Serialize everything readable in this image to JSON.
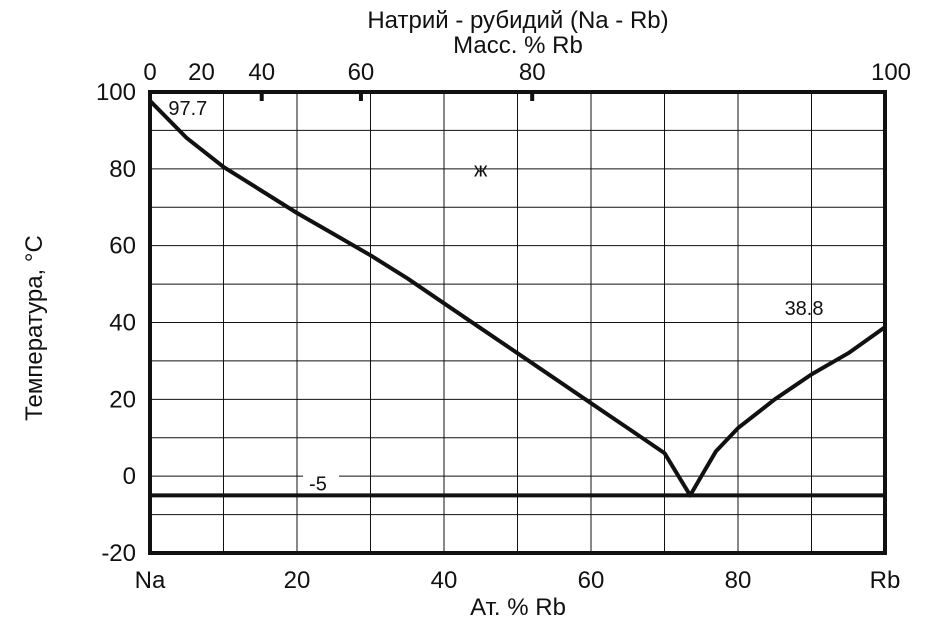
{
  "chart_data": {
    "type": "line",
    "title": "Натрий - рубидий (Na - Rb)",
    "top_axis_label": "Масс. % Rb",
    "xlabel": "Ат. % Rb",
    "ylabel": "Температура,  °C",
    "xlim": [
      0,
      100
    ],
    "ylim": [
      -20,
      100
    ],
    "x_ticks": [
      {
        "value": 0,
        "label": "Na"
      },
      {
        "value": 20,
        "label": "20"
      },
      {
        "value": 40,
        "label": "40"
      },
      {
        "value": 60,
        "label": "60"
      },
      {
        "value": 80,
        "label": "80"
      },
      {
        "value": 100,
        "label": "Rb"
      }
    ],
    "y_ticks": [
      {
        "value": 100,
        "label": "100"
      },
      {
        "value": 80,
        "label": "80"
      },
      {
        "value": 60,
        "label": "60"
      },
      {
        "value": 40,
        "label": "40"
      },
      {
        "value": 20,
        "label": "20"
      },
      {
        "value": 0,
        "label": "0"
      },
      {
        "value": -20,
        "label": "-20"
      }
    ],
    "mass_ticks": [
      {
        "label": "0",
        "at_pct": 0,
        "tick": false
      },
      {
        "label": "20",
        "at_pct": 7,
        "tick": false
      },
      {
        "label": "40",
        "at_pct": 15.2,
        "tick": true
      },
      {
        "label": "60",
        "at_pct": 28.7,
        "tick": true
      },
      {
        "label": "80",
        "at_pct": 52,
        "tick": true
      },
      {
        "label": "100",
        "at_pct": 100,
        "tick": false
      }
    ],
    "liquidus_na": [
      [
        0,
        97.7
      ],
      [
        5,
        88
      ],
      [
        10,
        80.5
      ],
      [
        15,
        74.5
      ],
      [
        20,
        68.5
      ],
      [
        25,
        63
      ],
      [
        30,
        57.5
      ],
      [
        35,
        51.5
      ],
      [
        40,
        45
      ],
      [
        45,
        38.5
      ],
      [
        50,
        32
      ],
      [
        55,
        25.5
      ],
      [
        60,
        19
      ],
      [
        65,
        12.5
      ],
      [
        70,
        6
      ],
      [
        73.5,
        -5
      ]
    ],
    "liquidus_rb": [
      [
        73.5,
        -5
      ],
      [
        75,
        0
      ],
      [
        77,
        6.5
      ],
      [
        80,
        12.5
      ],
      [
        85,
        20
      ],
      [
        90,
        26.5
      ],
      [
        95,
        32
      ],
      [
        100,
        38.8
      ]
    ],
    "eutectic_temp": -5,
    "annotations": [
      {
        "text": "97.7",
        "x": 2.5,
        "y": 97.7
      },
      {
        "text": "ж",
        "x": 45,
        "y": 78
      },
      {
        "text": "38.8",
        "x": 94.5,
        "y": 42
      },
      {
        "text": "-5",
        "x": 23,
        "y": -5
      }
    ]
  }
}
